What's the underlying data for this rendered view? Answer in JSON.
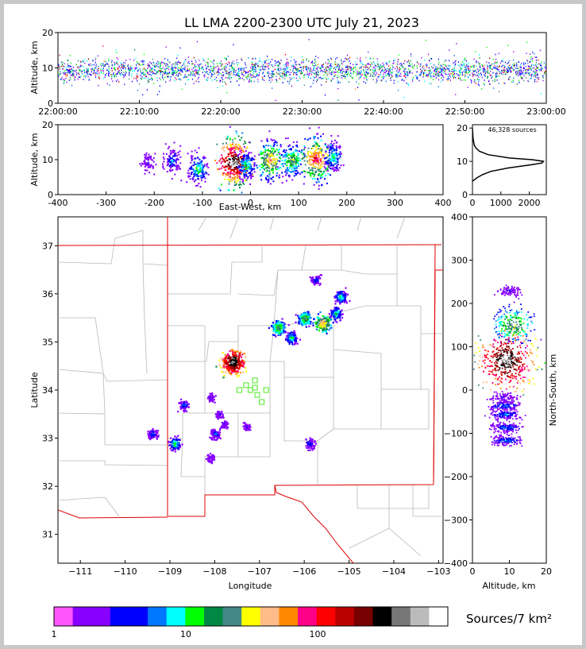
{
  "title": "LL LMA 2200-2300 UTC July 21, 2023",
  "source_count": "46,328 sources",
  "colorbar_label": "Sources/7 km²",
  "panels": {
    "time": {
      "ylabel": "Altitude, km",
      "xticks": [
        "22:00:00",
        "22:10:00",
        "22:20:00",
        "22:30:00",
        "22:40:00",
        "22:50:00",
        "23:00:00"
      ],
      "yticks": [
        "0",
        "10",
        "20"
      ]
    },
    "ew": {
      "ylabel": "Altitude, km",
      "xlabel": "East-West, km",
      "xticks": [
        "-400",
        "-300",
        "-200",
        "-100",
        "0",
        "100",
        "200",
        "300",
        "400"
      ],
      "yticks": [
        "0",
        "10",
        "20"
      ]
    },
    "hist": {
      "xticks": [
        "0",
        "1000",
        "2000"
      ],
      "yticks": [
        "0",
        "10",
        "20"
      ]
    },
    "map": {
      "xlabel": "Longitude",
      "ylabel": "Latitude",
      "xticks": [
        "−111",
        "−110",
        "−109",
        "−108",
        "−107",
        "−106",
        "−105",
        "−104",
        "−103"
      ],
      "yticks": [
        "31",
        "32",
        "33",
        "34",
        "35",
        "36",
        "37"
      ]
    },
    "ns": {
      "xlabel": "Altitude, km",
      "ylabel": "North-South, km",
      "xticks": [
        "0",
        "10",
        "20"
      ],
      "yticks": [
        "400",
        "300",
        "200",
        "100",
        "0",
        "−100",
        "−200",
        "−300",
        "−400"
      ]
    }
  },
  "colorbar": {
    "ticks": [
      "1",
      "10",
      "100"
    ],
    "colors": [
      "#ff55ff",
      "#8800ff",
      "#8800ff",
      "#0000ff",
      "#0000ff",
      "#0077ff",
      "#00ffff",
      "#00ff00",
      "#008844",
      "#448888",
      "#ffff00",
      "#ffbb88",
      "#ff8800",
      "#ff0088",
      "#ff0000",
      "#bb0000",
      "#770000",
      "#000000",
      "#777777",
      "#bbbbbb",
      "#ffffff"
    ]
  },
  "chart_data": [
    {
      "type": "scatter",
      "panel": "altitude-vs-time",
      "xlim": [
        "22:00:00",
        "23:00:00"
      ],
      "ylim": [
        0,
        20
      ],
      "description_band_altitude_km": [
        5,
        14
      ],
      "ylabel": "Altitude, km"
    },
    {
      "type": "heatmap",
      "panel": "altitude-vs-east-west",
      "xlabel": "East-West, km",
      "ylabel": "Altitude, km",
      "xlim": [
        -400,
        400
      ],
      "ylim": [
        0,
        20
      ],
      "clusters": [
        {
          "x": -215,
          "y": 9.5,
          "intensity": 1
        },
        {
          "x": -165,
          "y": 10,
          "intensity": 2
        },
        {
          "x": -110,
          "y": 7.5,
          "intensity": 3
        },
        {
          "x": -35,
          "y": 9.5,
          "intensity": 8
        },
        {
          "x": -10,
          "y": 8.5,
          "intensity": 3
        },
        {
          "x": 40,
          "y": 10,
          "intensity": 5
        },
        {
          "x": 85,
          "y": 10,
          "intensity": 4
        },
        {
          "x": 135,
          "y": 10.5,
          "intensity": 6
        },
        {
          "x": 170,
          "y": 11,
          "intensity": 3
        }
      ]
    },
    {
      "type": "line",
      "panel": "altitude-histogram",
      "xlim": [
        0,
        2600
      ],
      "ylim": [
        0,
        21
      ],
      "altitude_km": [
        4,
        5,
        6,
        7,
        8,
        9,
        9.5,
        10,
        10.5,
        11,
        12,
        13,
        14,
        15,
        17,
        20
      ],
      "sources": [
        0,
        150,
        350,
        650,
        1250,
        2100,
        2450,
        2500,
        2100,
        1300,
        550,
        250,
        120,
        60,
        20,
        0
      ]
    },
    {
      "type": "heatmap",
      "panel": "plan-view-map",
      "xlabel": "Longitude",
      "ylabel": "Latitude",
      "xlim": [
        -111.5,
        -102.9
      ],
      "ylim": [
        30.4,
        37.6
      ],
      "clusters": [
        {
          "lon": -107.6,
          "lat": 34.6,
          "intensity": 8
        },
        {
          "lon": -106.6,
          "lat": 35.3,
          "intensity": 4
        },
        {
          "lon": -106.3,
          "lat": 35.1,
          "intensity": 3
        },
        {
          "lon": -106.0,
          "lat": 35.5,
          "intensity": 4
        },
        {
          "lon": -105.6,
          "lat": 35.4,
          "intensity": 5
        },
        {
          "lon": -105.3,
          "lat": 35.6,
          "intensity": 3
        },
        {
          "lon": -105.2,
          "lat": 35.95,
          "intensity": 3
        },
        {
          "lon": -105.75,
          "lat": 36.3,
          "intensity": 2
        },
        {
          "lon": -108.9,
          "lat": 32.9,
          "intensity": 3
        },
        {
          "lon": -109.4,
          "lat": 33.1,
          "intensity": 2
        },
        {
          "lon": -108.7,
          "lat": 33.7,
          "intensity": 2
        },
        {
          "lon": -108.0,
          "lat": 33.1,
          "intensity": 2
        },
        {
          "lon": -107.8,
          "lat": 33.3,
          "intensity": 1
        },
        {
          "lon": -108.1,
          "lat": 33.85,
          "intensity": 1
        },
        {
          "lon": -105.9,
          "lat": 32.9,
          "intensity": 2
        },
        {
          "lon": -107.9,
          "lat": 33.5,
          "intensity": 1
        },
        {
          "lon": -107.3,
          "lat": 33.25,
          "intensity": 1
        },
        {
          "lon": -108.1,
          "lat": 32.6,
          "intensity": 1
        }
      ],
      "stations": [
        {
          "lon": -107.1,
          "lat": 34.2
        },
        {
          "lon": -107.3,
          "lat": 34.1
        },
        {
          "lon": -106.85,
          "lat": 34.0
        },
        {
          "lon": -107.05,
          "lat": 33.9
        },
        {
          "lon": -107.2,
          "lat": 34.0
        },
        {
          "lon": -107.45,
          "lat": 34.0
        },
        {
          "lon": -106.95,
          "lat": 33.75
        },
        {
          "lon": -107.1,
          "lat": 34.05
        }
      ]
    },
    {
      "type": "heatmap",
      "panel": "north-south-vs-altitude",
      "xlabel": "Altitude, km",
      "ylabel": "North-South, km",
      "xlim": [
        0,
        20
      ],
      "ylim": [
        -400,
        400
      ],
      "clusters": [
        {
          "x": 10,
          "y": 230,
          "intensity": 1
        },
        {
          "x": 11,
          "y": 150,
          "intensity": 4
        },
        {
          "x": 9,
          "y": 70,
          "intensity": 8
        },
        {
          "x": 8.5,
          "y": -15,
          "intensity": 1
        },
        {
          "x": 8.5,
          "y": -35,
          "intensity": 2
        },
        {
          "x": 8.5,
          "y": -55,
          "intensity": 2
        },
        {
          "x": 9,
          "y": -85,
          "intensity": 2
        },
        {
          "x": 9,
          "y": -115,
          "intensity": 2
        }
      ]
    }
  ]
}
